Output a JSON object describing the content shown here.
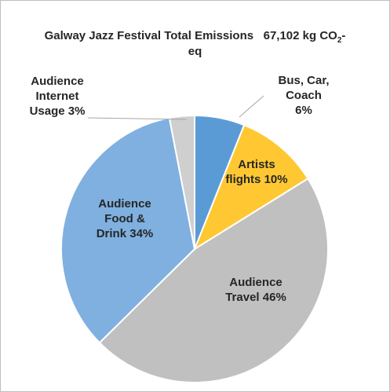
{
  "chart_data": {
    "type": "pie",
    "title_main": "Galway Jazz Festival Total Emissions   67,102 kg CO",
    "title_sub": "2",
    "title_tail": "-",
    "title_line2": "eq",
    "slices": [
      {
        "label_lines": [
          "Bus, Car,",
          "Coach",
          "6%"
        ],
        "value": 6,
        "color": "#5b9bd5"
      },
      {
        "label_lines": [
          "Artists",
          "flights 10%"
        ],
        "value": 10,
        "color": "#ffc832"
      },
      {
        "label_lines": [
          "Audience",
          "Travel 46%"
        ],
        "value": 46,
        "color": "#c0c0c0"
      },
      {
        "label_lines": [
          "Audience",
          "Food &",
          "Drink 34%"
        ],
        "value": 34,
        "color": "#7fb0e0"
      },
      {
        "label_lines": [
          "Audience",
          "Internet",
          "Usage 3%"
        ],
        "value": 3,
        "color": "#cfcfcf"
      }
    ],
    "start_angle_deg": 0,
    "direction": "clockwise",
    "legend": "none",
    "data_labels": "category and percentage"
  }
}
